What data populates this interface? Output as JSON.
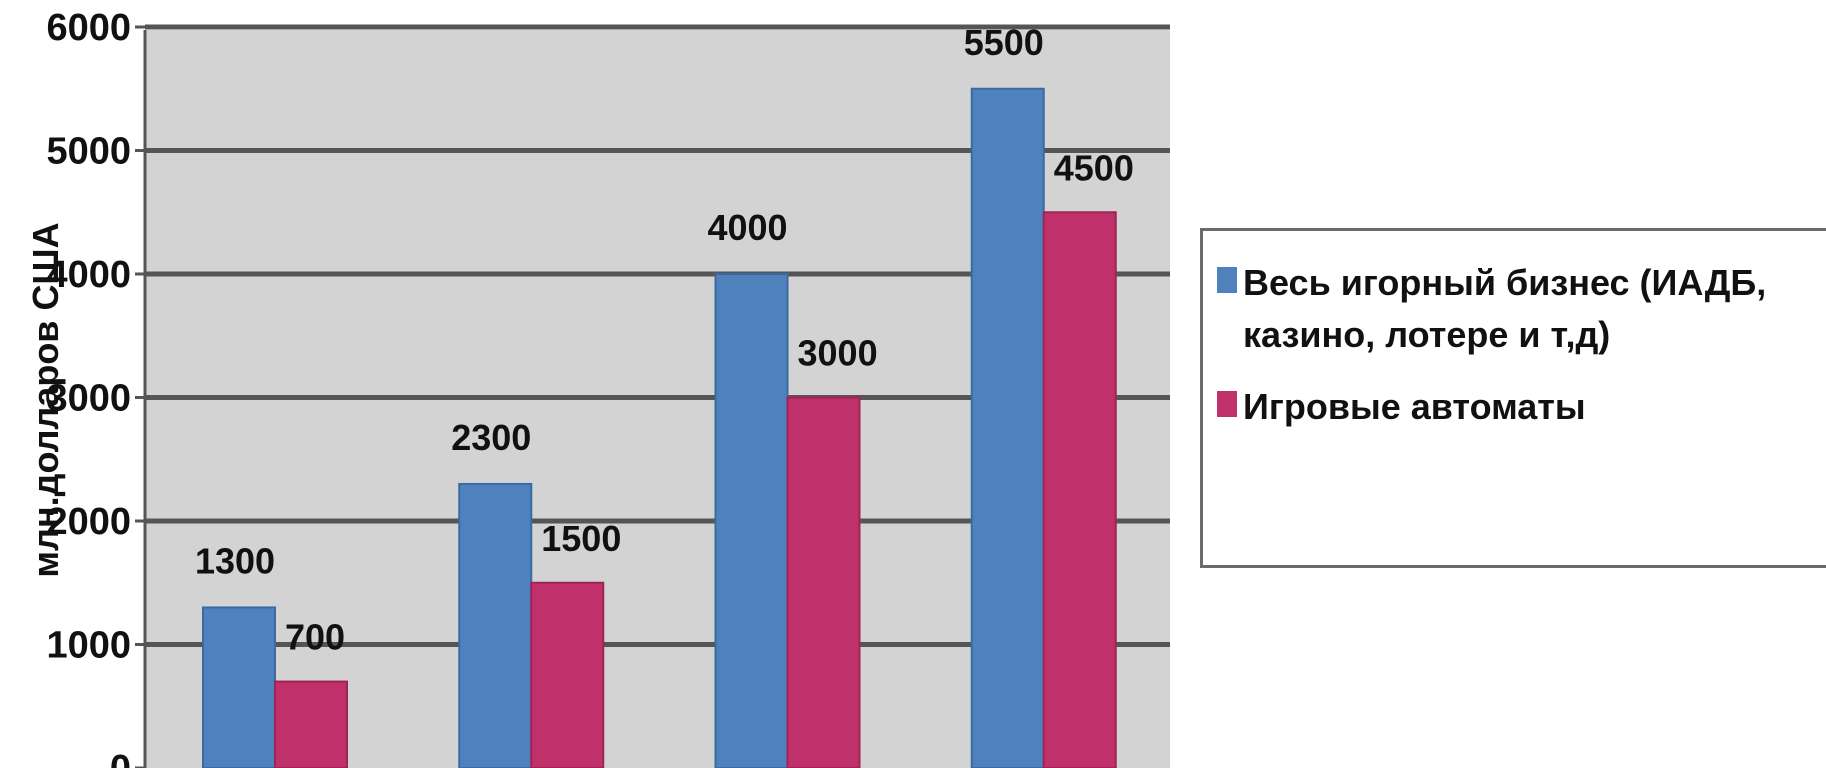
{
  "chart_data": {
    "type": "bar",
    "title": "",
    "xlabel": "",
    "ylabel": "млн.долларов США",
    "ylim": [
      0,
      6000
    ],
    "yticks": [
      0,
      1000,
      2000,
      3000,
      4000,
      5000,
      6000
    ],
    "categories": [
      "",
      "",
      "",
      ""
    ],
    "grid": true,
    "legend_position": "right",
    "series": [
      {
        "name": "Весь игорный бизнес (ИАДБ, казино, лотере и т,д)",
        "color": "#4f81bd",
        "values": [
          1300,
          2300,
          4000,
          5500
        ]
      },
      {
        "name": "Игровые автоматы",
        "color": "#c0306a",
        "values": [
          700,
          1500,
          3000,
          4500
        ]
      }
    ]
  }
}
